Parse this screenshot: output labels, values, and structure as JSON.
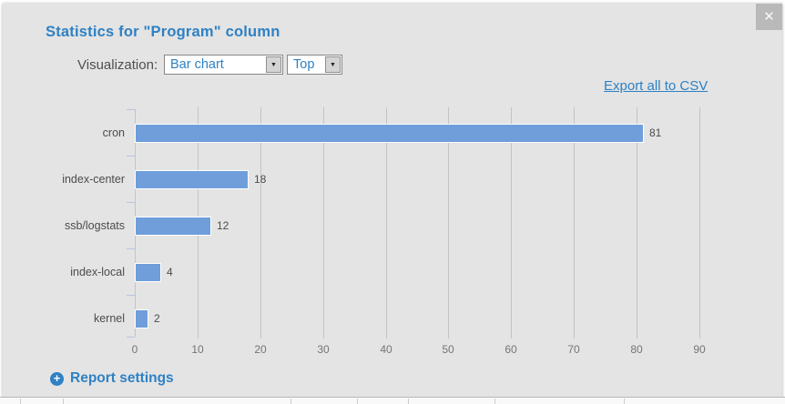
{
  "modal": {
    "title": "Statistics for \"Program\" column",
    "visualization_label": "Visualization:",
    "chart_type_select": {
      "value": "Bar chart"
    },
    "top_select": {
      "value": "Top"
    },
    "export_link_label": "Export all to CSV",
    "report_settings_label": "Report settings"
  },
  "icons": {
    "close": "✕",
    "dropdown_arrow": "▼",
    "plus": "+"
  },
  "colors": {
    "accent_blue": "#2e81c4",
    "bar_fill": "#6f9edb",
    "modal_bg": "#e4e4e4",
    "gridline": "#c3c3c3",
    "axis": "#b8c5da",
    "label_text": "#4c4c4c",
    "tick_text": "#757575",
    "close_button_bg": "#b9b9b9"
  },
  "chart_data": {
    "type": "bar",
    "orientation": "horizontal",
    "title": "",
    "categories": [
      "cron",
      "index-center",
      "ssb/logstats",
      "index-local",
      "kernel"
    ],
    "values": [
      81,
      18,
      12,
      4,
      2
    ],
    "x_ticks": [
      0,
      10,
      20,
      30,
      40,
      50,
      60,
      70,
      80,
      90
    ],
    "xlim": [
      0,
      90
    ],
    "grid": true,
    "value_labels": true,
    "legend": false
  }
}
